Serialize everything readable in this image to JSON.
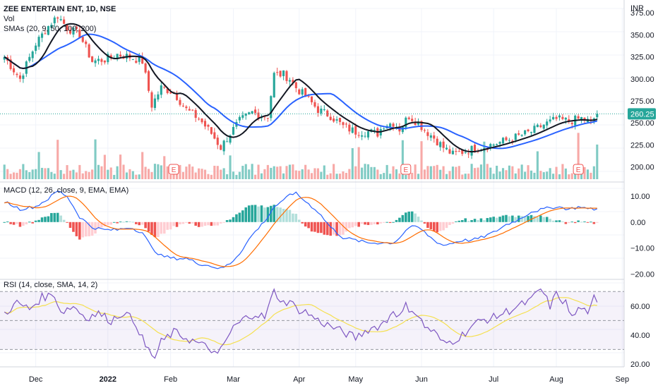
{
  "header": {
    "title": "ZEE ENTERTAIN ENT, 1D, NSE",
    "vol_label": "Vol",
    "sma_label": "SMAs (20, 9, 50, 100, 200)",
    "currency": "INR"
  },
  "price_panel": {
    "last_price": "260.25",
    "last_price_value": 260.25,
    "y_ticks": [
      "375.00",
      "350.00",
      "325.00",
      "300.00",
      "275.00",
      "250.00",
      "225.00",
      "200.00"
    ],
    "earnings_marker": "E"
  },
  "macd_panel": {
    "label": "MACD (12, 26, close, 9, EMA, EMA)",
    "y_ticks": [
      "10.00",
      "0.00",
      "−10.00",
      "−20.00"
    ]
  },
  "rsi_panel": {
    "label": "RSI (14, close, SMA, 14, 2)",
    "y_ticks": [
      "60.00",
      "40.00",
      "20.00"
    ]
  },
  "x_axis": {
    "ticks": [
      "Dec",
      "2022",
      "Feb",
      "Mar",
      "Apr",
      "May",
      "Jun",
      "Jul",
      "Aug",
      "Sep"
    ]
  },
  "colors": {
    "up": "#26a69a",
    "down": "#ef5350",
    "vol_up": "#80cbc4",
    "vol_down": "#f7a9a7",
    "sma_fast": "#131722",
    "sma_slow": "#2962ff",
    "macd_line": "#2962ff",
    "signal_line": "#ff6d00",
    "rsi_line": "#7e57c2",
    "rsi_ma": "#f5e050",
    "rsi_band": "#7e57c2"
  },
  "chart_data": {
    "type": "candlestick",
    "price_anchors": [
      [
        0,
        325
      ],
      [
        5,
        300
      ],
      [
        10,
        340
      ],
      [
        14,
        360
      ],
      [
        17,
        372
      ],
      [
        20,
        358
      ],
      [
        24,
        350
      ],
      [
        28,
        320
      ],
      [
        32,
        322
      ],
      [
        36,
        328
      ],
      [
        40,
        325
      ],
      [
        44,
        320
      ],
      [
        47,
        270
      ],
      [
        50,
        290
      ],
      [
        54,
        285
      ],
      [
        58,
        265
      ],
      [
        62,
        255
      ],
      [
        66,
        238
      ],
      [
        69,
        222
      ],
      [
        72,
        238
      ],
      [
        75,
        252
      ],
      [
        79,
        262
      ],
      [
        82,
        258
      ],
      [
        84,
        258
      ],
      [
        86,
        305
      ],
      [
        89,
        305
      ],
      [
        91,
        300
      ],
      [
        93,
        290
      ],
      [
        96,
        280
      ],
      [
        100,
        265
      ],
      [
        104,
        258
      ],
      [
        108,
        246
      ],
      [
        112,
        240
      ],
      [
        116,
        240
      ],
      [
        119,
        238
      ],
      [
        121,
        248
      ],
      [
        124,
        250
      ],
      [
        126,
        243
      ],
      [
        129,
        258
      ],
      [
        132,
        250
      ],
      [
        134,
        242
      ],
      [
        137,
        233
      ],
      [
        140,
        222
      ],
      [
        143,
        214
      ],
      [
        146,
        217
      ],
      [
        149,
        220
      ],
      [
        152,
        222
      ],
      [
        156,
        226
      ],
      [
        160,
        230
      ],
      [
        164,
        235
      ],
      [
        168,
        240
      ],
      [
        172,
        248
      ],
      [
        176,
        254
      ],
      [
        180,
        252
      ],
      [
        184,
        255
      ],
      [
        186,
        252
      ],
      [
        187,
        250
      ],
      [
        189,
        260.25
      ]
    ],
    "macd_anchors": [
      [
        0,
        8
      ],
      [
        5,
        5
      ],
      [
        10,
        6
      ],
      [
        14,
        9
      ],
      [
        17,
        12
      ],
      [
        20,
        10
      ],
      [
        24,
        2
      ],
      [
        28,
        -2
      ],
      [
        32,
        -3
      ],
      [
        36,
        -3
      ],
      [
        40,
        -2
      ],
      [
        44,
        -4
      ],
      [
        47,
        -10
      ],
      [
        50,
        -13
      ],
      [
        54,
        -14
      ],
      [
        58,
        -14
      ],
      [
        62,
        -16
      ],
      [
        66,
        -17
      ],
      [
        69,
        -18
      ],
      [
        72,
        -16
      ],
      [
        75,
        -12
      ],
      [
        79,
        -5
      ],
      [
        82,
        -1
      ],
      [
        84,
        2
      ],
      [
        86,
        6
      ],
      [
        89,
        8
      ],
      [
        91,
        11
      ],
      [
        93,
        11
      ],
      [
        96,
        8
      ],
      [
        100,
        4
      ],
      [
        104,
        -2
      ],
      [
        108,
        -6
      ],
      [
        112,
        -7
      ],
      [
        116,
        -8
      ],
      [
        119,
        -8
      ],
      [
        121,
        -8
      ],
      [
        124,
        -8
      ],
      [
        126,
        -6
      ],
      [
        129,
        -2
      ],
      [
        132,
        -2
      ],
      [
        134,
        -4
      ],
      [
        137,
        -7
      ],
      [
        140,
        -9
      ],
      [
        143,
        -8
      ],
      [
        146,
        -7
      ],
      [
        149,
        -7
      ],
      [
        152,
        -6
      ],
      [
        156,
        -4
      ],
      [
        160,
        -1
      ],
      [
        164,
        1
      ],
      [
        168,
        4
      ],
      [
        172,
        5
      ],
      [
        176,
        6
      ],
      [
        180,
        5
      ],
      [
        184,
        6
      ],
      [
        186,
        5
      ],
      [
        187,
        5
      ],
      [
        189,
        5
      ]
    ],
    "rsi_anchors": [
      [
        0,
        55
      ],
      [
        4,
        62
      ],
      [
        8,
        58
      ],
      [
        12,
        66
      ],
      [
        16,
        68
      ],
      [
        18,
        56
      ],
      [
        22,
        60
      ],
      [
        26,
        52
      ],
      [
        30,
        55
      ],
      [
        34,
        50
      ],
      [
        38,
        56
      ],
      [
        42,
        48
      ],
      [
        45,
        32
      ],
      [
        48,
        24
      ],
      [
        50,
        35
      ],
      [
        54,
        42
      ],
      [
        58,
        38
      ],
      [
        62,
        34
      ],
      [
        66,
        30
      ],
      [
        68,
        25
      ],
      [
        70,
        34
      ],
      [
        73,
        45
      ],
      [
        77,
        52
      ],
      [
        80,
        55
      ],
      [
        83,
        52
      ],
      [
        86,
        70
      ],
      [
        89,
        62
      ],
      [
        91,
        64
      ],
      [
        93,
        58
      ],
      [
        96,
        56
      ],
      [
        100,
        50
      ],
      [
        104,
        46
      ],
      [
        108,
        42
      ],
      [
        112,
        38
      ],
      [
        116,
        44
      ],
      [
        119,
        46
      ],
      [
        122,
        50
      ],
      [
        124,
        58
      ],
      [
        126,
        52
      ],
      [
        128,
        60
      ],
      [
        131,
        56
      ],
      [
        134,
        46
      ],
      [
        137,
        42
      ],
      [
        140,
        34
      ],
      [
        143,
        36
      ],
      [
        146,
        40
      ],
      [
        149,
        46
      ],
      [
        152,
        50
      ],
      [
        156,
        52
      ],
      [
        160,
        56
      ],
      [
        164,
        60
      ],
      [
        168,
        64
      ],
      [
        171,
        72
      ],
      [
        174,
        60
      ],
      [
        176,
        68
      ],
      [
        179,
        62
      ],
      [
        181,
        52
      ],
      [
        184,
        60
      ],
      [
        186,
        52
      ],
      [
        188,
        66
      ],
      [
        189,
        64
      ]
    ],
    "earnings_index": [
      54,
      128,
      183
    ],
    "x_tick_index": [
      10,
      33,
      53,
      73,
      94,
      112,
      133,
      156,
      176,
      197
    ],
    "price_ylim": [
      186,
      380
    ],
    "macd_ylim": [
      -21,
      13
    ],
    "rsi_ylim": [
      18,
      76
    ],
    "rsi_bands": [
      70,
      50,
      30
    ]
  }
}
